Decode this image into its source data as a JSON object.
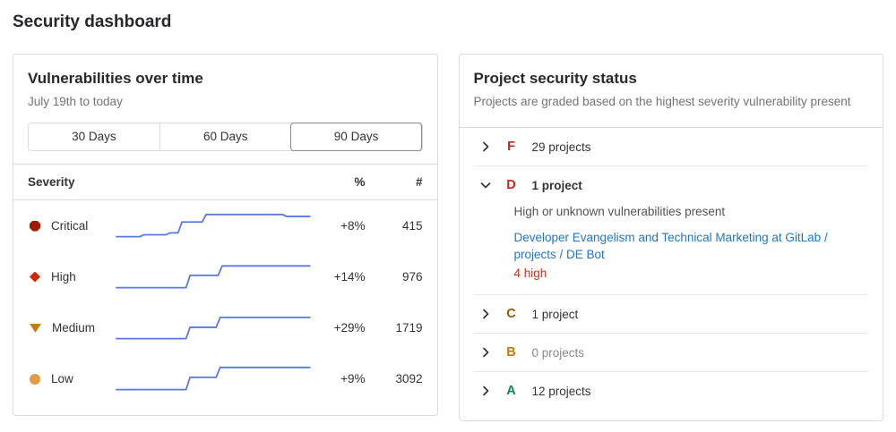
{
  "page": {
    "title": "Security dashboard"
  },
  "colors": {
    "sparkline": "#5a78e2",
    "link": "#1f75cb",
    "danger_text": "#c6321e",
    "panel_border": "#dbdbdb"
  },
  "vulns_panel": {
    "title": "Vulnerabilities over time",
    "subtitle": "July 19th to today",
    "range_buttons": [
      {
        "label": "30 Days",
        "active": false
      },
      {
        "label": "60 Days",
        "active": false
      },
      {
        "label": "90 Days",
        "active": true
      }
    ],
    "table_headers": {
      "severity": "Severity",
      "percent": "%",
      "count": "#"
    },
    "rows": [
      {
        "severity": "Critical",
        "icon": "severity-critical-icon",
        "icon_color": "#9e1b00",
        "percent_change": "+8%",
        "count": "415"
      },
      {
        "severity": "High",
        "icon": "severity-high-icon",
        "icon_color": "#d2230e",
        "percent_change": "+14%",
        "count": "976"
      },
      {
        "severity": "Medium",
        "icon": "severity-medium-icon",
        "icon_color": "#c17d10",
        "percent_change": "+29%",
        "count": "1719"
      },
      {
        "severity": "Low",
        "icon": "severity-low-icon",
        "icon_color": "#e09b45",
        "percent_change": "+9%",
        "count": "3092"
      }
    ]
  },
  "chart_data": [
    {
      "type": "line",
      "name": "Critical",
      "x_range": "July 19th to today (90 Days)",
      "pct_change": "+8%",
      "current_value": 415,
      "points_norm": [
        [
          1,
          29
        ],
        [
          13,
          29
        ],
        [
          15,
          27
        ],
        [
          26,
          27
        ],
        [
          28,
          25
        ],
        [
          32,
          25
        ],
        [
          34,
          13.5
        ],
        [
          44,
          13.5
        ],
        [
          46,
          5.5
        ],
        [
          84,
          5.5
        ],
        [
          86,
          7.5
        ],
        [
          98,
          7.5
        ]
      ]
    },
    {
      "type": "line",
      "name": "High",
      "x_range": "July 19th to today (90 Days)",
      "pct_change": "+14%",
      "current_value": 976,
      "points_norm": [
        [
          1,
          29
        ],
        [
          36,
          29
        ],
        [
          38,
          16
        ],
        [
          52,
          16
        ],
        [
          54,
          6
        ],
        [
          98,
          6
        ]
      ]
    },
    {
      "type": "line",
      "name": "Medium",
      "x_range": "July 19th to today (90 Days)",
      "pct_change": "+29%",
      "current_value": 1719,
      "points_norm": [
        [
          1,
          29
        ],
        [
          36,
          29
        ],
        [
          38,
          17
        ],
        [
          51,
          17
        ],
        [
          53,
          6.5
        ],
        [
          98,
          6.5
        ]
      ]
    },
    {
      "type": "line",
      "name": "Low",
      "x_range": "July 19th to today (90 Days)",
      "pct_change": "+9%",
      "current_value": 3092,
      "points_norm": [
        [
          1,
          29
        ],
        [
          36,
          29
        ],
        [
          38,
          16
        ],
        [
          51,
          16
        ],
        [
          53,
          5.5
        ],
        [
          98,
          5.5
        ]
      ]
    }
  ],
  "status_panel": {
    "title": "Project security status",
    "subtitle": "Projects are graded based on the highest severity vulnerability present",
    "grades": [
      {
        "grade": "F",
        "color": "#c0281b",
        "label": "29 projects"
      },
      {
        "grade": "D",
        "color": "#c0281b",
        "label": "1 project",
        "description": "High or unknown vulnerabilities present",
        "project_link": "Developer Evangelism and Technical Marketing at GitLab / projects / DE Bot",
        "vulnerability_summary": "4 high"
      },
      {
        "grade": "C",
        "color": "#9e5400",
        "label": "1 project"
      },
      {
        "grade": "B",
        "color": "#bf7b0e",
        "label": "0 projects"
      },
      {
        "grade": "A",
        "color": "#108548",
        "label": "12 projects"
      }
    ]
  }
}
